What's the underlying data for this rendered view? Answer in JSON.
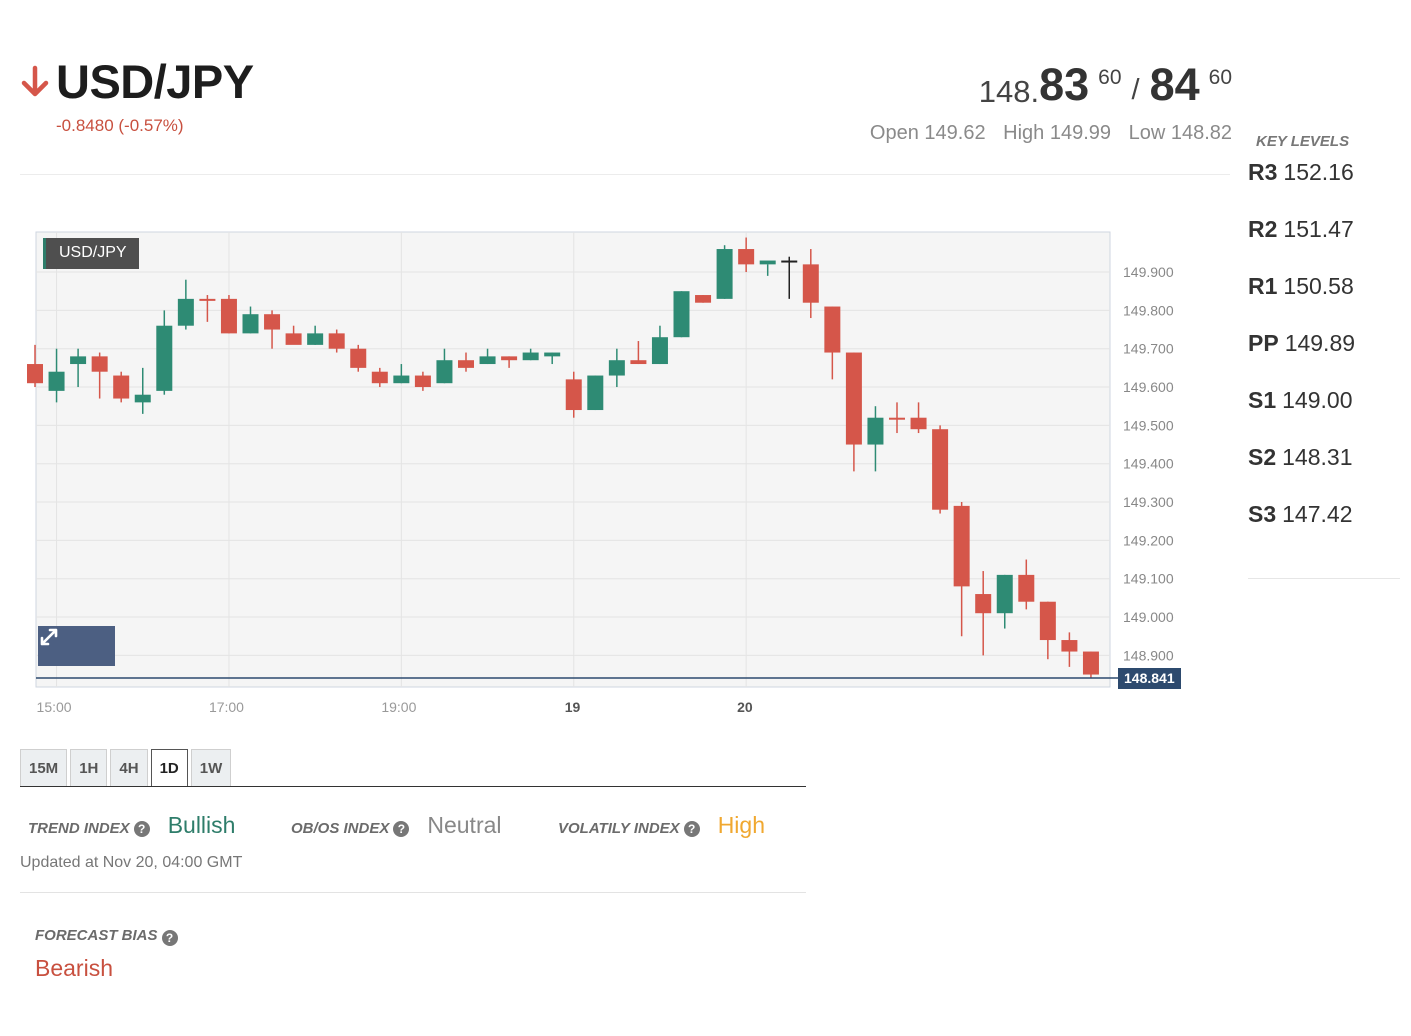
{
  "instrument": {
    "symbol": "USD/JPY",
    "direction_icon": "arrow-down-icon",
    "change": "-0.8480 (-0.57%)"
  },
  "quote": {
    "bid_prefix": "148.",
    "bid_big": "83",
    "bid_pips": "60",
    "separator": "/",
    "ask_big": "84",
    "ask_pips": "60",
    "open": "Open 149.62",
    "high": "High 149.99",
    "low": "Low 148.82"
  },
  "key_levels": {
    "title": "KEY LEVELS",
    "levels": [
      {
        "name": "R3",
        "value": "152.16"
      },
      {
        "name": "R2",
        "value": "151.47"
      },
      {
        "name": "R1",
        "value": "150.58"
      },
      {
        "name": "PP",
        "value": "149.89"
      },
      {
        "name": "S1",
        "value": "149.00"
      },
      {
        "name": "S2",
        "value": "148.31"
      },
      {
        "name": "S3",
        "value": "147.42"
      }
    ]
  },
  "chart": {
    "tag": "USD/JPY",
    "expand_icon": "expand-arrows-icon",
    "last_price": "148.841"
  },
  "chart_data": {
    "type": "candlestick",
    "title": "USD/JPY",
    "ylim": [
      148.84,
      150.0
    ],
    "y_ticks": [
      149.9,
      149.8,
      149.7,
      149.6,
      149.5,
      149.4,
      149.3,
      149.2,
      149.1,
      149.0,
      148.9
    ],
    "y_tick_labels": [
      "149.900",
      "149.800",
      "149.700",
      "149.600",
      "149.500",
      "149.400",
      "149.300",
      "149.200",
      "149.100",
      "149.000",
      "148.900"
    ],
    "x_tick_labels": [
      {
        "label": "15:00",
        "index": 1
      },
      {
        "label": "17:00",
        "index": 9
      },
      {
        "label": "19:00",
        "index": 17
      },
      {
        "label": "19",
        "index": 25
      },
      {
        "label": "20",
        "index": 33
      }
    ],
    "last_price": 148.841,
    "candles": [
      {
        "o": 149.66,
        "h": 149.71,
        "l": 149.6,
        "c": 149.61
      },
      {
        "o": 149.59,
        "h": 149.7,
        "l": 149.56,
        "c": 149.64
      },
      {
        "o": 149.66,
        "h": 149.7,
        "l": 149.6,
        "c": 149.68
      },
      {
        "o": 149.68,
        "h": 149.69,
        "l": 149.57,
        "c": 149.64
      },
      {
        "o": 149.63,
        "h": 149.64,
        "l": 149.56,
        "c": 149.57
      },
      {
        "o": 149.56,
        "h": 149.65,
        "l": 149.53,
        "c": 149.58
      },
      {
        "o": 149.59,
        "h": 149.8,
        "l": 149.58,
        "c": 149.76
      },
      {
        "o": 149.76,
        "h": 149.88,
        "l": 149.75,
        "c": 149.83
      },
      {
        "o": 149.83,
        "h": 149.84,
        "l": 149.77,
        "c": 149.83
      },
      {
        "o": 149.83,
        "h": 149.84,
        "l": 149.74,
        "c": 149.74
      },
      {
        "o": 149.74,
        "h": 149.81,
        "l": 149.74,
        "c": 149.79
      },
      {
        "o": 149.79,
        "h": 149.8,
        "l": 149.7,
        "c": 149.75
      },
      {
        "o": 149.74,
        "h": 149.76,
        "l": 149.72,
        "c": 149.71
      },
      {
        "o": 149.71,
        "h": 149.76,
        "l": 149.71,
        "c": 149.74
      },
      {
        "o": 149.74,
        "h": 149.75,
        "l": 149.69,
        "c": 149.7
      },
      {
        "o": 149.7,
        "h": 149.71,
        "l": 149.64,
        "c": 149.65
      },
      {
        "o": 149.64,
        "h": 149.65,
        "l": 149.6,
        "c": 149.61
      },
      {
        "o": 149.61,
        "h": 149.66,
        "l": 149.61,
        "c": 149.63
      },
      {
        "o": 149.63,
        "h": 149.64,
        "l": 149.59,
        "c": 149.6
      },
      {
        "o": 149.61,
        "h": 149.7,
        "l": 149.61,
        "c": 149.67
      },
      {
        "o": 149.67,
        "h": 149.69,
        "l": 149.64,
        "c": 149.65
      },
      {
        "o": 149.66,
        "h": 149.7,
        "l": 149.66,
        "c": 149.68
      },
      {
        "o": 149.68,
        "h": 149.68,
        "l": 149.65,
        "c": 149.67
      },
      {
        "o": 149.67,
        "h": 149.7,
        "l": 149.67,
        "c": 149.69
      },
      {
        "o": 149.68,
        "h": 149.69,
        "l": 149.66,
        "c": 149.69
      },
      {
        "o": 149.62,
        "h": 149.64,
        "l": 149.52,
        "c": 149.54
      },
      {
        "o": 149.54,
        "h": 149.63,
        "l": 149.54,
        "c": 149.63
      },
      {
        "o": 149.63,
        "h": 149.7,
        "l": 149.6,
        "c": 149.67
      },
      {
        "o": 149.67,
        "h": 149.72,
        "l": 149.66,
        "c": 149.66
      },
      {
        "o": 149.66,
        "h": 149.76,
        "l": 149.66,
        "c": 149.73
      },
      {
        "o": 149.73,
        "h": 149.85,
        "l": 149.73,
        "c": 149.85
      },
      {
        "o": 149.84,
        "h": 149.84,
        "l": 149.82,
        "c": 149.82
      },
      {
        "o": 149.83,
        "h": 149.97,
        "l": 149.83,
        "c": 149.96
      },
      {
        "o": 149.96,
        "h": 149.99,
        "l": 149.9,
        "c": 149.92
      },
      {
        "o": 149.92,
        "h": 149.92,
        "l": 149.89,
        "c": 149.93
      },
      {
        "o": 149.93,
        "h": 149.94,
        "l": 149.83,
        "c": 149.93
      },
      {
        "o": 149.92,
        "h": 149.96,
        "l": 149.78,
        "c": 149.82
      },
      {
        "o": 149.81,
        "h": 149.81,
        "l": 149.62,
        "c": 149.69
      },
      {
        "o": 149.69,
        "h": 149.69,
        "l": 149.38,
        "c": 149.45
      },
      {
        "o": 149.45,
        "h": 149.55,
        "l": 149.38,
        "c": 149.52
      },
      {
        "o": 149.52,
        "h": 149.56,
        "l": 149.48,
        "c": 149.52
      },
      {
        "o": 149.52,
        "h": 149.56,
        "l": 149.48,
        "c": 149.49
      },
      {
        "o": 149.49,
        "h": 149.5,
        "l": 149.27,
        "c": 149.28
      },
      {
        "o": 149.29,
        "h": 149.3,
        "l": 148.95,
        "c": 149.08
      },
      {
        "o": 149.06,
        "h": 149.12,
        "l": 148.9,
        "c": 149.01
      },
      {
        "o": 149.01,
        "h": 149.11,
        "l": 148.97,
        "c": 149.11
      },
      {
        "o": 149.11,
        "h": 149.15,
        "l": 149.02,
        "c": 149.04
      },
      {
        "o": 149.04,
        "h": 149.04,
        "l": 148.89,
        "c": 148.94
      },
      {
        "o": 148.94,
        "h": 148.96,
        "l": 148.87,
        "c": 148.91
      },
      {
        "o": 148.91,
        "h": 148.91,
        "l": 148.84,
        "c": 148.85
      }
    ],
    "colors": {
      "up": "#2e8b74",
      "down": "#d5564a",
      "cross": "#222222",
      "grid": "#e4e4e4",
      "background": "#f5f5f5",
      "price_line": "#2d4a6e"
    }
  },
  "timeframes": {
    "tabs": [
      "15M",
      "1H",
      "4H",
      "1D",
      "1W"
    ],
    "active": "1D"
  },
  "indices": {
    "trend_label": "TREND INDEX",
    "trend_value": "Bullish",
    "trend_color": "#2e7d6a",
    "obos_label": "OB/OS INDEX",
    "obos_value": "Neutral",
    "obos_color": "#888888",
    "volatility_label": "VOLATILY INDEX",
    "volatility_value": "High",
    "volatility_color": "#f0a830",
    "help_icon": "question-circle-icon",
    "updated": "Updated at Nov 20, 04:00 GMT"
  },
  "forecast": {
    "label": "FORECAST BIAS",
    "value": "Bearish",
    "color": "#c8503f"
  }
}
